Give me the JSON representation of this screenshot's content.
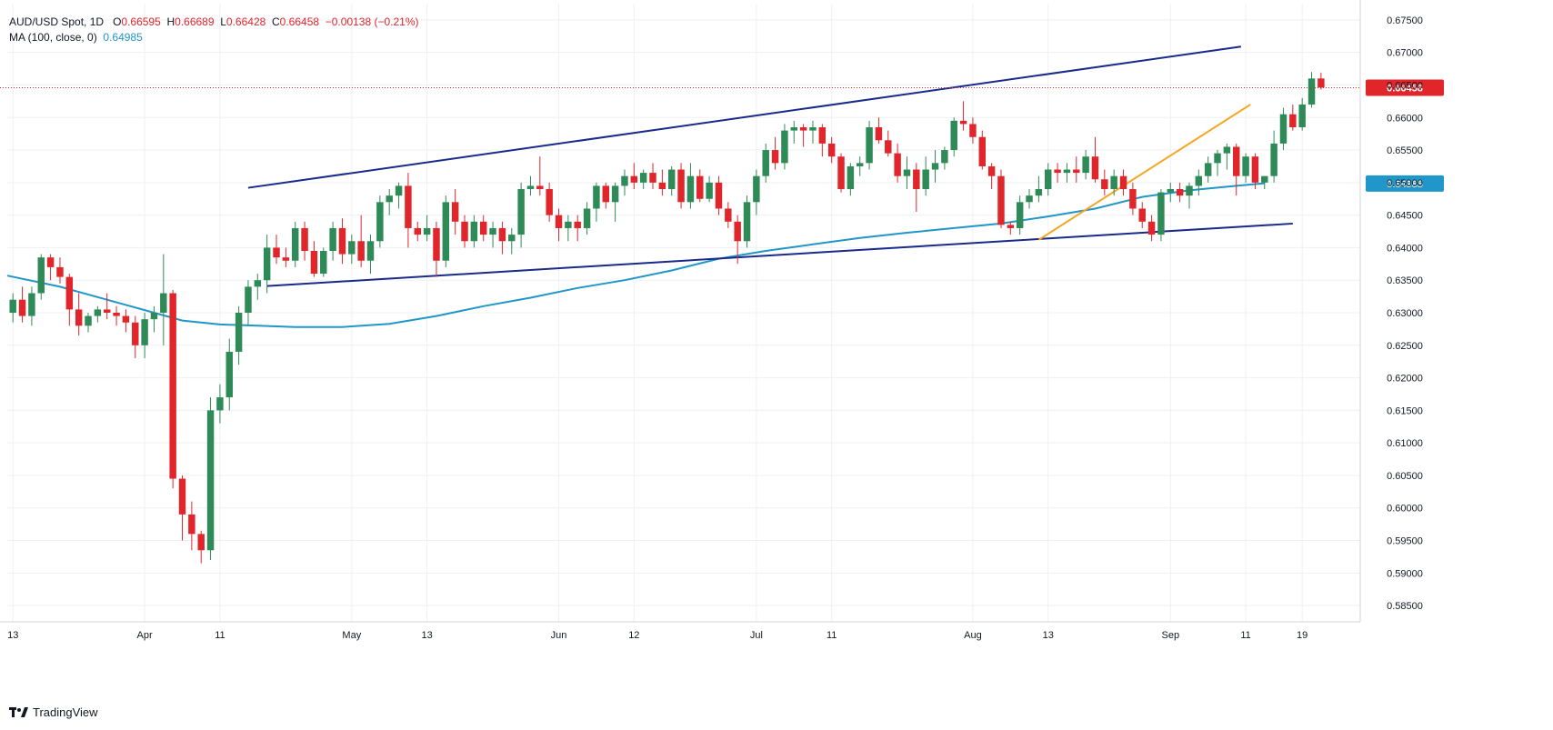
{
  "legend": {
    "symbol": "AUD/USD Spot, 1D",
    "o_label": "O",
    "o": "0.66595",
    "h_label": "H",
    "h": "0.66689",
    "l_label": "L",
    "l": "0.66428",
    "c_label": "C",
    "c": "0.66458",
    "change": "−0.00138 (−0.21%)",
    "ma_label": "MA (100, close, 0)",
    "ma_value": "0.64985"
  },
  "brand": "TradingView",
  "colors": {
    "up": "#2e8b57",
    "down": "#e0262b",
    "ma": "#2196c8",
    "channel": "#1a2a8a",
    "trend": "#f5a623",
    "grid": "#eef0f3"
  },
  "chart_data": {
    "type": "candlestick",
    "ylim": [
      0.5825,
      0.6775
    ],
    "y_ticks": [
      "0.67500",
      "0.67000",
      "0.66500",
      "0.66000",
      "0.65500",
      "0.65000",
      "0.64500",
      "0.64000",
      "0.63500",
      "0.63000",
      "0.62500",
      "0.62000",
      "0.61500",
      "0.61000",
      "0.60500",
      "0.60000",
      "0.59500",
      "0.59000",
      "0.58500"
    ],
    "x_ticks": [
      {
        "label": "13",
        "i": 0
      },
      {
        "label": "Apr",
        "i": 14
      },
      {
        "label": "11",
        "i": 22
      },
      {
        "label": "May",
        "i": 36
      },
      {
        "label": "13",
        "i": 44
      },
      {
        "label": "Jun",
        "i": 58
      },
      {
        "label": "12",
        "i": 66
      },
      {
        "label": "Jul",
        "i": 79
      },
      {
        "label": "11",
        "i": 87
      },
      {
        "label": "Aug",
        "i": 102
      },
      {
        "label": "13",
        "i": 110
      },
      {
        "label": "Sep",
        "i": 123
      },
      {
        "label": "11",
        "i": 131
      },
      {
        "label": "19",
        "i": 137
      }
    ],
    "x_range": [
      -0.6,
      142.2
    ],
    "last_price": "0.66458",
    "ma_last": "0.64985",
    "candles": [
      [
        0.63,
        0.633,
        0.6285,
        0.632
      ],
      [
        0.632,
        0.634,
        0.6285,
        0.6295
      ],
      [
        0.6295,
        0.634,
        0.628,
        0.633
      ],
      [
        0.633,
        0.639,
        0.632,
        0.6385
      ],
      [
        0.6385,
        0.639,
        0.635,
        0.637
      ],
      [
        0.637,
        0.6385,
        0.6345,
        0.6355
      ],
      [
        0.6355,
        0.636,
        0.628,
        0.6305
      ],
      [
        0.6305,
        0.633,
        0.6265,
        0.628
      ],
      [
        0.628,
        0.63,
        0.627,
        0.6295
      ],
      [
        0.6295,
        0.631,
        0.6285,
        0.6305
      ],
      [
        0.6305,
        0.633,
        0.629,
        0.63
      ],
      [
        0.63,
        0.631,
        0.628,
        0.6295
      ],
      [
        0.6295,
        0.6305,
        0.627,
        0.6285
      ],
      [
        0.6285,
        0.6295,
        0.623,
        0.625
      ],
      [
        0.625,
        0.63,
        0.623,
        0.629
      ],
      [
        0.629,
        0.631,
        0.627,
        0.63
      ],
      [
        0.63,
        0.639,
        0.625,
        0.633
      ],
      [
        0.633,
        0.6335,
        0.603,
        0.6045
      ],
      [
        0.6045,
        0.605,
        0.595,
        0.599
      ],
      [
        0.599,
        0.601,
        0.5935,
        0.596
      ],
      [
        0.596,
        0.5965,
        0.5915,
        0.5935
      ],
      [
        0.5935,
        0.617,
        0.592,
        0.615
      ],
      [
        0.615,
        0.619,
        0.613,
        0.617
      ],
      [
        0.617,
        0.626,
        0.615,
        0.624
      ],
      [
        0.624,
        0.631,
        0.622,
        0.63
      ],
      [
        0.63,
        0.635,
        0.628,
        0.634
      ],
      [
        0.634,
        0.636,
        0.632,
        0.635
      ],
      [
        0.635,
        0.642,
        0.633,
        0.64
      ],
      [
        0.64,
        0.642,
        0.6375,
        0.6385
      ],
      [
        0.6385,
        0.64,
        0.637,
        0.638
      ],
      [
        0.638,
        0.644,
        0.637,
        0.643
      ],
      [
        0.643,
        0.644,
        0.638,
        0.6395
      ],
      [
        0.6395,
        0.641,
        0.6355,
        0.636
      ],
      [
        0.636,
        0.64,
        0.6355,
        0.6395
      ],
      [
        0.6395,
        0.644,
        0.638,
        0.643
      ],
      [
        0.643,
        0.6445,
        0.6375,
        0.639
      ],
      [
        0.639,
        0.642,
        0.6375,
        0.641
      ],
      [
        0.641,
        0.645,
        0.637,
        0.638
      ],
      [
        0.638,
        0.642,
        0.636,
        0.641
      ],
      [
        0.641,
        0.648,
        0.64,
        0.647
      ],
      [
        0.647,
        0.649,
        0.645,
        0.648
      ],
      [
        0.648,
        0.65,
        0.646,
        0.6495
      ],
      [
        0.6495,
        0.6515,
        0.64,
        0.643
      ],
      [
        0.643,
        0.644,
        0.641,
        0.642
      ],
      [
        0.642,
        0.645,
        0.641,
        0.643
      ],
      [
        0.643,
        0.644,
        0.6355,
        0.638
      ],
      [
        0.638,
        0.648,
        0.637,
        0.647
      ],
      [
        0.647,
        0.649,
        0.642,
        0.644
      ],
      [
        0.644,
        0.645,
        0.64,
        0.641
      ],
      [
        0.641,
        0.645,
        0.64,
        0.644
      ],
      [
        0.644,
        0.645,
        0.641,
        0.642
      ],
      [
        0.642,
        0.644,
        0.64,
        0.643
      ],
      [
        0.643,
        0.644,
        0.639,
        0.641
      ],
      [
        0.641,
        0.643,
        0.639,
        0.642
      ],
      [
        0.642,
        0.65,
        0.64,
        0.649
      ],
      [
        0.649,
        0.651,
        0.648,
        0.6495
      ],
      [
        0.6495,
        0.654,
        0.648,
        0.649
      ],
      [
        0.649,
        0.65,
        0.644,
        0.645
      ],
      [
        0.645,
        0.646,
        0.641,
        0.643
      ],
      [
        0.643,
        0.645,
        0.641,
        0.644
      ],
      [
        0.644,
        0.645,
        0.641,
        0.643
      ],
      [
        0.643,
        0.647,
        0.642,
        0.646
      ],
      [
        0.646,
        0.65,
        0.644,
        0.6495
      ],
      [
        0.6495,
        0.65,
        0.646,
        0.647
      ],
      [
        0.647,
        0.65,
        0.644,
        0.6495
      ],
      [
        0.6495,
        0.652,
        0.648,
        0.651
      ],
      [
        0.651,
        0.653,
        0.649,
        0.65
      ],
      [
        0.65,
        0.652,
        0.649,
        0.6515
      ],
      [
        0.6515,
        0.653,
        0.649,
        0.65
      ],
      [
        0.65,
        0.652,
        0.648,
        0.649
      ],
      [
        0.649,
        0.6525,
        0.648,
        0.652
      ],
      [
        0.652,
        0.653,
        0.646,
        0.647
      ],
      [
        0.647,
        0.653,
        0.646,
        0.651
      ],
      [
        0.651,
        0.652,
        0.647,
        0.6475
      ],
      [
        0.6475,
        0.651,
        0.647,
        0.65
      ],
      [
        0.65,
        0.651,
        0.645,
        0.646
      ],
      [
        0.646,
        0.647,
        0.643,
        0.644
      ],
      [
        0.644,
        0.645,
        0.6375,
        0.641
      ],
      [
        0.641,
        0.648,
        0.64,
        0.647
      ],
      [
        0.647,
        0.652,
        0.645,
        0.651
      ],
      [
        0.651,
        0.656,
        0.65,
        0.655
      ],
      [
        0.655,
        0.657,
        0.652,
        0.653
      ],
      [
        0.653,
        0.659,
        0.652,
        0.658
      ],
      [
        0.658,
        0.6595,
        0.656,
        0.6585
      ],
      [
        0.6585,
        0.659,
        0.6555,
        0.658
      ],
      [
        0.658,
        0.6595,
        0.656,
        0.6585
      ],
      [
        0.6585,
        0.659,
        0.654,
        0.656
      ],
      [
        0.656,
        0.657,
        0.653,
        0.654
      ],
      [
        0.654,
        0.6545,
        0.6485,
        0.649
      ],
      [
        0.649,
        0.653,
        0.648,
        0.6525
      ],
      [
        0.6525,
        0.654,
        0.651,
        0.653
      ],
      [
        0.653,
        0.6595,
        0.652,
        0.6585
      ],
      [
        0.6585,
        0.66,
        0.656,
        0.6565
      ],
      [
        0.6565,
        0.658,
        0.654,
        0.6545
      ],
      [
        0.6545,
        0.656,
        0.65,
        0.651
      ],
      [
        0.651,
        0.654,
        0.649,
        0.652
      ],
      [
        0.652,
        0.653,
        0.6455,
        0.649
      ],
      [
        0.649,
        0.654,
        0.648,
        0.652
      ],
      [
        0.652,
        0.655,
        0.65,
        0.653
      ],
      [
        0.653,
        0.6555,
        0.652,
        0.655
      ],
      [
        0.655,
        0.66,
        0.654,
        0.6595
      ],
      [
        0.6595,
        0.6625,
        0.658,
        0.659
      ],
      [
        0.659,
        0.66,
        0.656,
        0.657
      ],
      [
        0.657,
        0.658,
        0.652,
        0.6525
      ],
      [
        0.6525,
        0.653,
        0.649,
        0.651
      ],
      [
        0.651,
        0.652,
        0.643,
        0.6435
      ],
      [
        0.6435,
        0.644,
        0.642,
        0.643
      ],
      [
        0.643,
        0.648,
        0.642,
        0.647
      ],
      [
        0.647,
        0.649,
        0.646,
        0.648
      ],
      [
        0.648,
        0.651,
        0.647,
        0.649
      ],
      [
        0.649,
        0.653,
        0.648,
        0.652
      ],
      [
        0.652,
        0.653,
        0.65,
        0.6515
      ],
      [
        0.6515,
        0.653,
        0.65,
        0.652
      ],
      [
        0.652,
        0.654,
        0.65,
        0.6515
      ],
      [
        0.6515,
        0.655,
        0.6505,
        0.654
      ],
      [
        0.654,
        0.657,
        0.65,
        0.6505
      ],
      [
        0.6505,
        0.652,
        0.648,
        0.649
      ],
      [
        0.649,
        0.652,
        0.648,
        0.651
      ],
      [
        0.651,
        0.652,
        0.648,
        0.649
      ],
      [
        0.649,
        0.65,
        0.645,
        0.646
      ],
      [
        0.646,
        0.647,
        0.643,
        0.644
      ],
      [
        0.644,
        0.645,
        0.641,
        0.642
      ],
      [
        0.642,
        0.649,
        0.641,
        0.6485
      ],
      [
        0.6485,
        0.65,
        0.647,
        0.649
      ],
      [
        0.649,
        0.65,
        0.647,
        0.648
      ],
      [
        0.648,
        0.65,
        0.646,
        0.6495
      ],
      [
        0.6495,
        0.652,
        0.648,
        0.651
      ],
      [
        0.651,
        0.654,
        0.65,
        0.653
      ],
      [
        0.653,
        0.655,
        0.651,
        0.6545
      ],
      [
        0.6545,
        0.656,
        0.652,
        0.6555
      ],
      [
        0.6555,
        0.656,
        0.648,
        0.651
      ],
      [
        0.651,
        0.6545,
        0.65,
        0.654
      ],
      [
        0.654,
        0.6545,
        0.649,
        0.65
      ],
      [
        0.65,
        0.651,
        0.649,
        0.651
      ],
      [
        0.651,
        0.658,
        0.65,
        0.656
      ],
      [
        0.656,
        0.6615,
        0.655,
        0.6605
      ],
      [
        0.6605,
        0.662,
        0.658,
        0.6585
      ],
      [
        0.6585,
        0.663,
        0.658,
        0.662
      ],
      [
        0.662,
        0.667,
        0.6615,
        0.666
      ],
      [
        0.666,
        0.6669,
        0.6643,
        0.6646
      ]
    ],
    "ma": [
      [
        -0.6,
        0.6357
      ],
      [
        5,
        0.634
      ],
      [
        10,
        0.632
      ],
      [
        15,
        0.63
      ],
      [
        18,
        0.6288
      ],
      [
        22,
        0.6282
      ],
      [
        26,
        0.628
      ],
      [
        30,
        0.6278
      ],
      [
        35,
        0.6278
      ],
      [
        40,
        0.6283
      ],
      [
        45,
        0.6295
      ],
      [
        50,
        0.631
      ],
      [
        55,
        0.6323
      ],
      [
        60,
        0.6338
      ],
      [
        65,
        0.635
      ],
      [
        70,
        0.6365
      ],
      [
        75,
        0.6383
      ],
      [
        80,
        0.6395
      ],
      [
        85,
        0.6405
      ],
      [
        90,
        0.6415
      ],
      [
        95,
        0.6423
      ],
      [
        100,
        0.643
      ],
      [
        105,
        0.6437
      ],
      [
        110,
        0.6448
      ],
      [
        115,
        0.646
      ],
      [
        120,
        0.6478
      ],
      [
        125,
        0.6488
      ],
      [
        130,
        0.6495
      ],
      [
        133,
        0.6499
      ]
    ],
    "lines": [
      {
        "name": "upper-channel",
        "x1": 25,
        "y1": 0.6492,
        "x2": 130.5,
        "y2": 0.6709
      },
      {
        "name": "lower-channel",
        "x1": 27,
        "y1": 0.6341,
        "x2": 136,
        "y2": 0.6437
      },
      {
        "name": "uptrend",
        "x1": 109,
        "y1": 0.6412,
        "x2": 131.5,
        "y2": 0.662
      }
    ]
  }
}
